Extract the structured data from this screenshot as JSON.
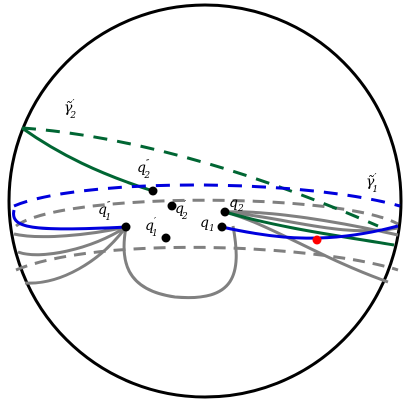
{
  "labels": {
    "gamma2": {
      "base": "γ̃",
      "sup": "′",
      "sub": "2"
    },
    "gamma1": {
      "base": "γ̃",
      "sup": "′",
      "sub": "1"
    },
    "q2pp": {
      "base": "q",
      "sup": "″",
      "sub": "2"
    },
    "q2p": {
      "base": "q",
      "sup": "′",
      "sub": "2"
    },
    "q1pp": {
      "base": "q",
      "sup": "″",
      "sub": "1"
    },
    "q1p": {
      "base": "q",
      "sup": "′",
      "sub": "1"
    },
    "q2": {
      "base": "q",
      "sup": "",
      "sub": "2"
    },
    "q1": {
      "base": "q",
      "sup": "",
      "sub": "1"
    }
  },
  "colors": {
    "outline": "#000000",
    "green": "#006633",
    "blue": "#0000dd",
    "gray": "#808080",
    "marker": "#ff0000"
  }
}
